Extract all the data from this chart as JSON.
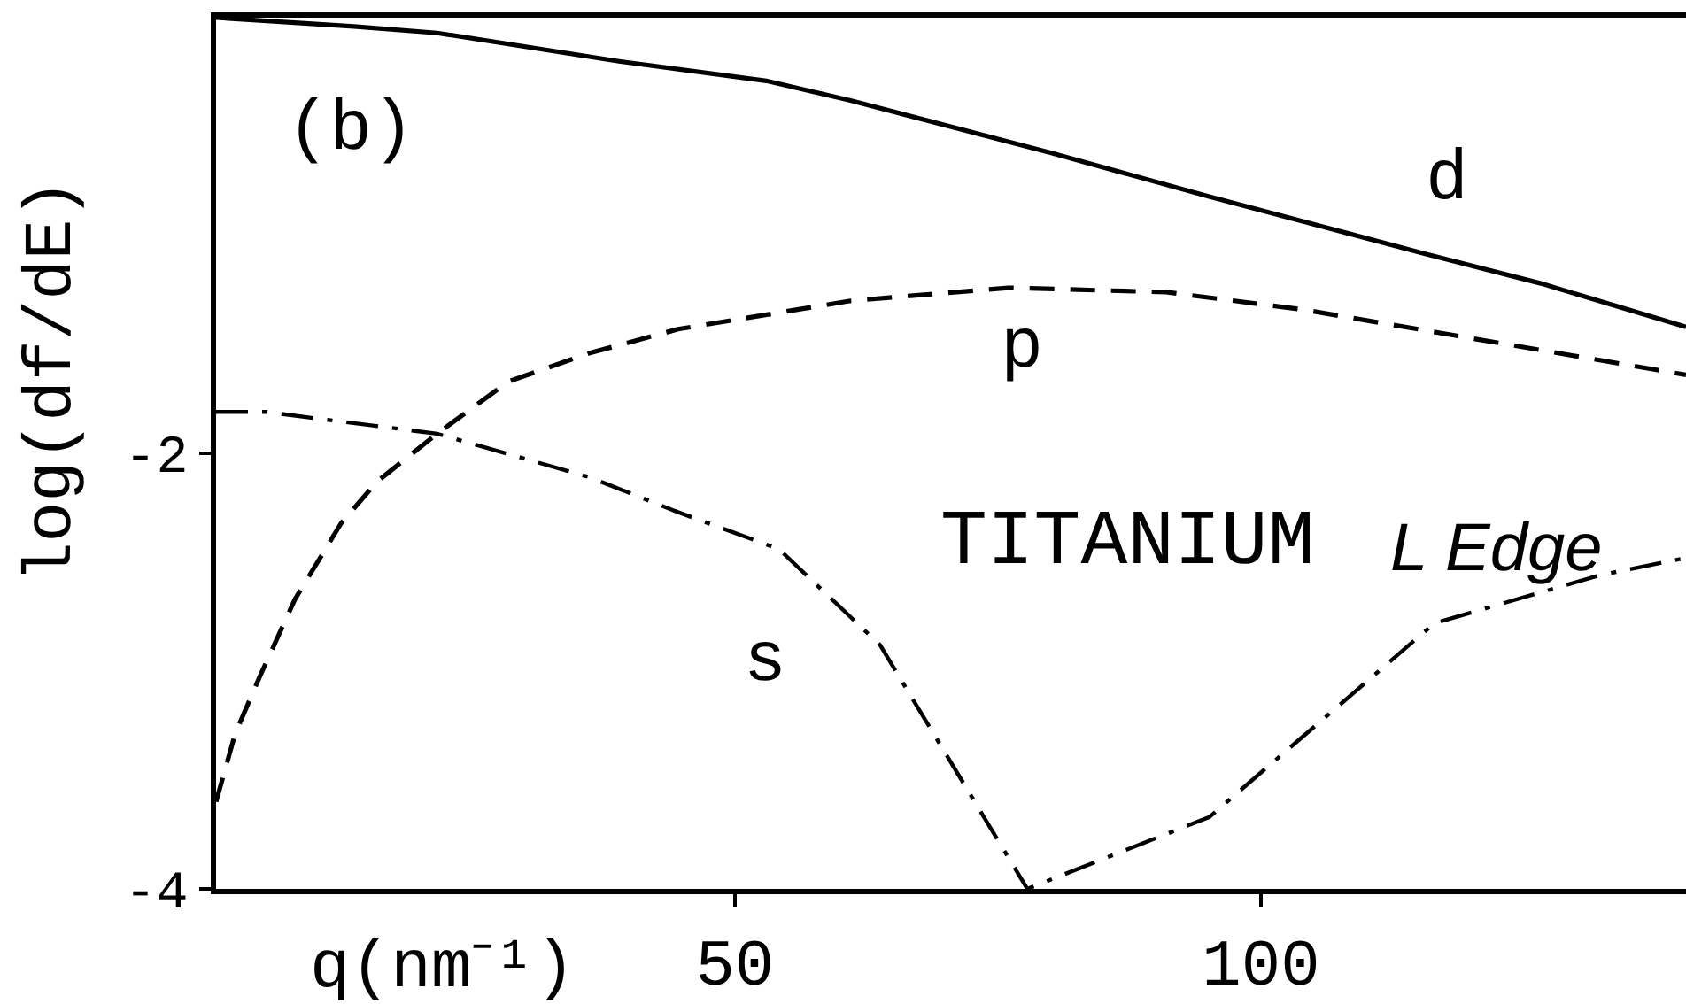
{
  "chart_data": {
    "type": "line",
    "xlabel": "q(nm⁻¹)",
    "ylabel": "log(df/dE)",
    "annotations": [
      "(b)",
      "TITANIUM",
      "L Edge"
    ],
    "xlim": [
      0.7,
      140.4
    ],
    "ylim": [
      -4,
      0
    ],
    "xticks": [
      50,
      100
    ],
    "yticks": [
      -4,
      -2
    ],
    "marker": "none",
    "series": [
      {
        "name": "d",
        "color": "#000000",
        "line_style": "solid",
        "x": [
          0.7,
          13.8,
          21.7,
          39,
          53,
          61,
          80,
          95,
          115.3,
          126.6,
          140.4
        ],
        "values": [
          0,
          -0.04,
          -0.07,
          -0.2,
          -0.29,
          -0.38,
          -0.62,
          -0.82,
          -1.08,
          -1.22,
          -1.42
        ]
      },
      {
        "name": "p",
        "color": "#000000",
        "line_style": "dashed",
        "x": [
          0.7,
          2.5,
          4.9,
          8.2,
          12.6,
          16,
          21.7,
          28.5,
          36.2,
          44.6,
          61,
          76,
          91,
          104,
          121,
          140.4
        ],
        "values": [
          -3.6,
          -3.29,
          -3.02,
          -2.67,
          -2.32,
          -2.13,
          -1.91,
          -1.67,
          -1.54,
          -1.43,
          -1.3,
          -1.24,
          -1.26,
          -1.34,
          -1.48,
          -1.64
        ]
      },
      {
        "name": "s",
        "color": "#000000",
        "line_style": "dashdot",
        "x": [
          0.7,
          5.4,
          21.7,
          36.2,
          44.6,
          54.2,
          63.8,
          77.8,
          95.1,
          116.5,
          132.2,
          140.4
        ],
        "values": [
          -1.81,
          -1.81,
          -1.91,
          -2.11,
          -2.27,
          -2.44,
          -2.88,
          -4,
          -3.67,
          -2.78,
          -2.56,
          -2.48
        ]
      }
    ]
  }
}
